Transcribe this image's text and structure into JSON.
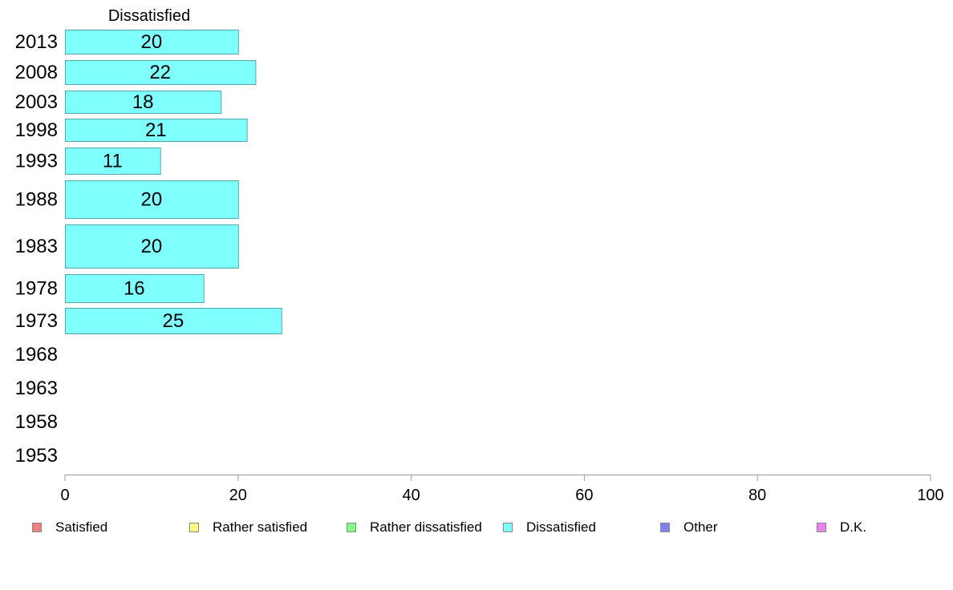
{
  "chart_data": {
    "type": "bar",
    "orientation": "horizontal",
    "title": "Dissatisfied",
    "categories": [
      "2013",
      "2008",
      "2003",
      "1998",
      "1993",
      "1988",
      "1983",
      "1978",
      "1973",
      "1968",
      "1963",
      "1958",
      "1953"
    ],
    "series": [
      {
        "name": "Dissatisfied",
        "color": "#80ffff",
        "values": [
          20,
          22,
          18,
          21,
          11,
          20,
          20,
          16,
          25,
          null,
          null,
          null,
          null
        ],
        "labels": [
          "20",
          "22",
          "18",
          "21",
          "11",
          "20",
          "20",
          "16",
          "25",
          "",
          "",
          "",
          ""
        ]
      }
    ],
    "xlim": [
      0,
      100
    ],
    "xticks": [
      "0",
      "20",
      "40",
      "60",
      "80",
      "100"
    ],
    "grid": false,
    "legend_placement": "bottom",
    "legend": [
      {
        "label": "Satisfied",
        "color": "#f08080"
      },
      {
        "label": "Rather satisfied",
        "color": "#ffff80"
      },
      {
        "label": "Rather dissatisfied",
        "color": "#80ff80"
      },
      {
        "label": "Dissatisfied",
        "color": "#80ffff"
      },
      {
        "label": "Other",
        "color": "#8080f0"
      },
      {
        "label": "D.K.",
        "color": "#f080f0"
      }
    ]
  }
}
